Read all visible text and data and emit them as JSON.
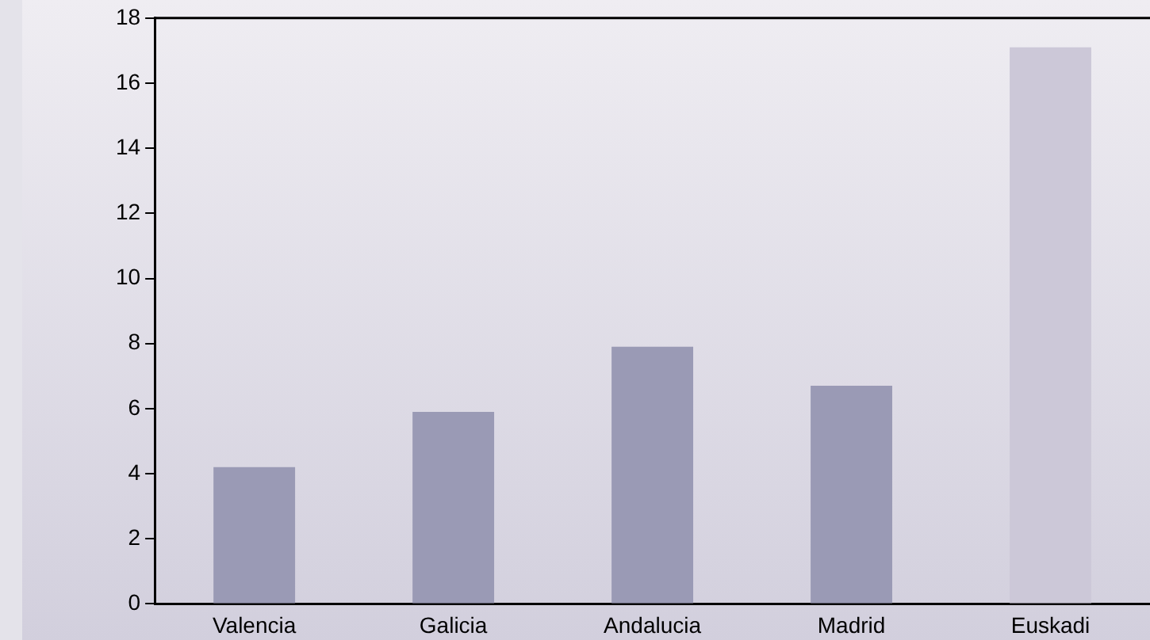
{
  "chart_data": {
    "type": "bar",
    "categories": [
      "Valencia",
      "Galicia",
      "Andalucia",
      "Madrid",
      "Euskadi"
    ],
    "values": [
      4.2,
      5.9,
      7.9,
      6.7,
      17.1
    ],
    "colors": [
      "#9a9ab5",
      "#9a9ab5",
      "#9a9ab5",
      "#9a9ab5",
      "#ccc8d8"
    ],
    "ylim": [
      0,
      18
    ],
    "yticks": [
      0,
      2,
      4,
      6,
      8,
      10,
      12,
      14,
      16,
      18
    ],
    "grid": false,
    "legend": false
  }
}
